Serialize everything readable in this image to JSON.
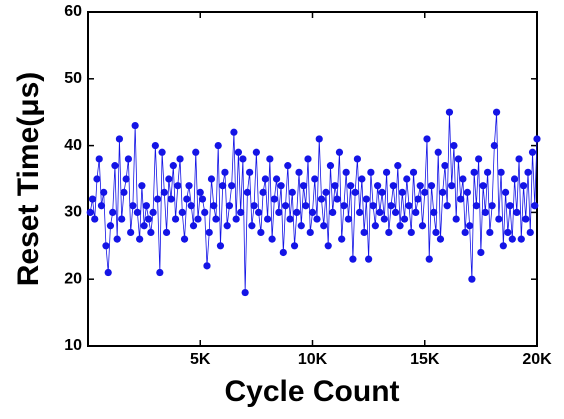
{
  "chart_data": {
    "type": "line",
    "x_label": "Cycle Count",
    "y_label": "Reset Time(μs)",
    "xlim": [
      0,
      20000
    ],
    "ylim": [
      10,
      60
    ],
    "xticks": [
      {
        "value": 5000,
        "label": "5K"
      },
      {
        "value": 10000,
        "label": "10K"
      },
      {
        "value": 15000,
        "label": "15K"
      },
      {
        "value": 20000,
        "label": "20K"
      }
    ],
    "yticks": [
      10,
      20,
      30,
      40,
      50,
      60
    ],
    "x": [
      100,
      200,
      300,
      400,
      500,
      600,
      700,
      800,
      900,
      1000,
      1100,
      1200,
      1300,
      1400,
      1500,
      1600,
      1700,
      1800,
      1900,
      2000,
      2100,
      2200,
      2300,
      2400,
      2500,
      2600,
      2700,
      2800,
      2900,
      3000,
      3100,
      3200,
      3300,
      3400,
      3500,
      3600,
      3700,
      3800,
      3900,
      4000,
      4100,
      4200,
      4300,
      4400,
      4500,
      4600,
      4700,
      4800,
      4900,
      5000,
      5100,
      5200,
      5300,
      5400,
      5500,
      5600,
      5700,
      5800,
      5900,
      6000,
      6100,
      6200,
      6300,
      6400,
      6500,
      6600,
      6700,
      6800,
      6900,
      7000,
      7100,
      7200,
      7300,
      7400,
      7500,
      7600,
      7700,
      7800,
      7900,
      8000,
      8100,
      8200,
      8300,
      8400,
      8500,
      8600,
      8700,
      8800,
      8900,
      9000,
      9100,
      9200,
      9300,
      9400,
      9500,
      9600,
      9700,
      9800,
      9900,
      10000,
      10100,
      10200,
      10300,
      10400,
      10500,
      10600,
      10700,
      10800,
      10900,
      11000,
      11100,
      11200,
      11300,
      11400,
      11500,
      11600,
      11700,
      11800,
      11900,
      12000,
      12100,
      12200,
      12300,
      12400,
      12500,
      12600,
      12700,
      12800,
      12900,
      13000,
      13100,
      13200,
      13300,
      13400,
      13500,
      13600,
      13700,
      13800,
      13900,
      14000,
      14100,
      14200,
      14300,
      14400,
      14500,
      14600,
      14700,
      14800,
      14900,
      15000,
      15100,
      15200,
      15300,
      15400,
      15500,
      15600,
      15700,
      15800,
      15900,
      16000,
      16100,
      16200,
      16300,
      16400,
      16500,
      16600,
      16700,
      16800,
      16900,
      17000,
      17100,
      17200,
      17300,
      17400,
      17500,
      17600,
      17700,
      17800,
      17900,
      18000,
      18100,
      18200,
      18300,
      18400,
      18500,
      18600,
      18700,
      18800,
      18900,
      19000,
      19100,
      19200,
      19300,
      19400,
      19500,
      19600,
      19700,
      19800,
      19900,
      20000
    ],
    "series": [
      {
        "color": "#1414e6",
        "values": [
          30,
          32,
          29,
          35,
          38,
          31,
          33,
          25,
          21,
          28,
          30,
          37,
          26,
          41,
          29,
          33,
          35,
          38,
          27,
          31,
          43,
          30,
          26,
          34,
          28,
          31,
          29,
          27,
          30,
          40,
          32,
          21,
          39,
          33,
          27,
          35,
          32,
          37,
          29,
          34,
          38,
          30,
          26,
          32,
          34,
          31,
          28,
          39,
          29,
          33,
          32,
          30,
          22,
          27,
          35,
          31,
          29,
          40,
          25,
          34,
          36,
          28,
          31,
          34,
          42,
          29,
          39,
          30,
          38,
          18,
          33,
          36,
          28,
          31,
          39,
          30,
          27,
          33,
          35,
          29,
          38,
          26,
          32,
          35,
          30,
          34,
          24,
          31,
          37,
          29,
          33,
          25,
          30,
          36,
          28,
          34,
          31,
          38,
          27,
          30,
          35,
          29,
          41,
          32,
          28,
          33,
          25,
          37,
          30,
          34,
          32,
          39,
          26,
          31,
          36,
          29,
          34,
          23,
          33,
          38,
          30,
          35,
          27,
          32,
          23,
          36,
          31,
          28,
          34,
          30,
          33,
          29,
          36,
          27,
          31,
          34,
          30,
          37,
          28,
          33,
          29,
          35,
          31,
          27,
          36,
          30,
          32,
          34,
          28,
          33,
          41,
          23,
          34,
          30,
          27,
          39,
          26,
          33,
          37,
          31,
          45,
          34,
          40,
          29,
          38,
          32,
          35,
          27,
          33,
          28,
          20,
          36,
          31,
          38,
          24,
          34,
          30,
          36,
          27,
          31,
          40,
          45,
          29,
          36,
          25,
          33,
          27,
          31,
          26,
          35,
          30,
          38,
          26,
          34,
          29,
          36,
          27,
          39,
          31,
          41
        ]
      }
    ]
  }
}
